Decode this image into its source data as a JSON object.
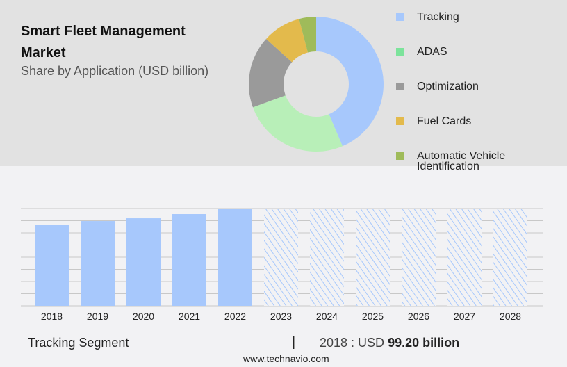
{
  "header": {
    "title": "Smart Fleet Management Market",
    "subtitle": "Share by Application (USD billion)"
  },
  "chart_data": [
    {
      "type": "pie",
      "title": "Share by Application (USD billion)",
      "labels": [
        "Tracking",
        "ADAS",
        "Optimization",
        "Fuel Cards",
        "Automatic Vehicle Identification"
      ],
      "values": [
        43.6,
        25.8,
        17.3,
        9.2,
        4.1
      ],
      "colors": [
        "#a7c8fc",
        "#b8efb8",
        "#9a9a9a",
        "#e3ba4c",
        "#9fbb5a"
      ],
      "legend_colors": [
        "#a7c8fc",
        "#7ce39b",
        "#9a9a9a",
        "#e3ba4c",
        "#9fbb5a"
      ],
      "legend": "right"
    },
    {
      "type": "bar",
      "title": "Tracking Segment",
      "categories": [
        "2018",
        "2019",
        "2020",
        "2021",
        "2022",
        "2023",
        "2024",
        "2025",
        "2026",
        "2027",
        "2028"
      ],
      "values": [
        99.2,
        103.4,
        106.8,
        111.9,
        118.7,
        null,
        null,
        null,
        null,
        null,
        null
      ],
      "forecast": [
        false,
        false,
        false,
        false,
        false,
        true,
        true,
        true,
        true,
        true,
        true
      ],
      "ylim": [
        0,
        118.7
      ],
      "grid": true,
      "color": "#a7c8fc"
    }
  ],
  "footer": {
    "segment": "Tracking Segment",
    "separator": "|",
    "value_prefix": "2018 : USD ",
    "value": "99.20 billion",
    "site": "www.technavio.com"
  }
}
